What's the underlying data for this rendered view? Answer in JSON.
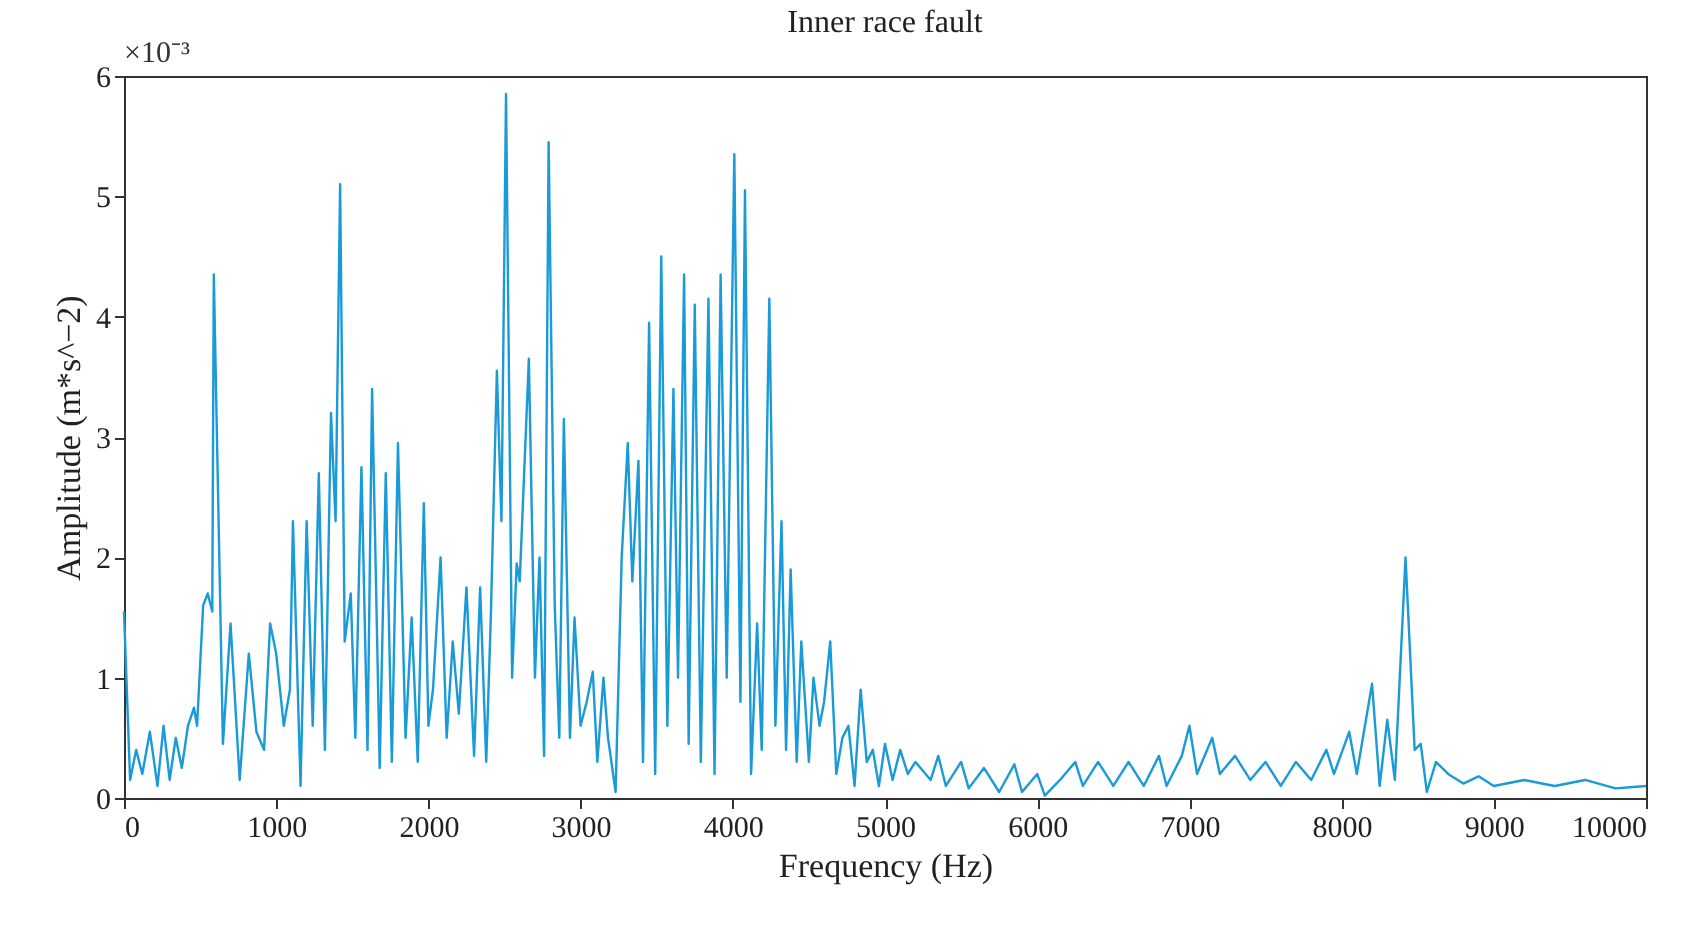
{
  "chart_data": {
    "type": "line",
    "title": "Inner race fault",
    "xlabel": "Frequency (Hz)",
    "ylabel": "Amplitude (m*s^−2)",
    "annotations": [
      "×10⁻³"
    ],
    "xlim": [
      0,
      10000
    ],
    "xticks": [
      0,
      1000,
      2000,
      3000,
      4000,
      5000,
      6000,
      7000,
      8000,
      9000,
      10000
    ],
    "ylim": [
      0,
      6
    ],
    "yticks": [
      0,
      1,
      2,
      3,
      4,
      5,
      6
    ],
    "grid": false,
    "legend": false,
    "marker": "none",
    "line_style": "solid",
    "series": [
      {
        "color": "#1a9ad6",
        "x": [
          0,
          40,
          80,
          120,
          170,
          220,
          260,
          300,
          340,
          380,
          420,
          460,
          480,
          520,
          550,
          580,
          590,
          650,
          700,
          760,
          820,
          870,
          920,
          960,
          1000,
          1050,
          1090,
          1110,
          1160,
          1200,
          1240,
          1280,
          1320,
          1360,
          1390,
          1420,
          1450,
          1490,
          1520,
          1560,
          1600,
          1630,
          1680,
          1720,
          1760,
          1800,
          1850,
          1890,
          1930,
          1970,
          2000,
          2030,
          2080,
          2120,
          2160,
          2200,
          2250,
          2300,
          2340,
          2380,
          2410,
          2450,
          2480,
          2510,
          2550,
          2580,
          2600,
          2660,
          2700,
          2730,
          2760,
          2790,
          2830,
          2860,
          2890,
          2930,
          2960,
          3000,
          3040,
          3080,
          3110,
          3150,
          3180,
          3230,
          3270,
          3310,
          3340,
          3380,
          3410,
          3450,
          3490,
          3530,
          3570,
          3610,
          3640,
          3680,
          3710,
          3750,
          3790,
          3840,
          3880,
          3920,
          3960,
          4010,
          4050,
          4080,
          4120,
          4160,
          4190,
          4240,
          4280,
          4320,
          4350,
          4380,
          4420,
          4450,
          4500,
          4530,
          4570,
          4600,
          4640,
          4680,
          4720,
          4760,
          4800,
          4840,
          4880,
          4920,
          4960,
          5000,
          5050,
          5100,
          5150,
          5200,
          5300,
          5350,
          5400,
          5500,
          5550,
          5650,
          5750,
          5850,
          5900,
          6000,
          6050,
          6150,
          6250,
          6300,
          6400,
          6500,
          6600,
          6700,
          6800,
          6850,
          6950,
          7000,
          7050,
          7150,
          7200,
          7300,
          7400,
          7500,
          7600,
          7700,
          7800,
          7900,
          7950,
          8050,
          8100,
          8200,
          8250,
          8300,
          8350,
          8420,
          8480,
          8520,
          8560,
          8620,
          8700,
          8800,
          8900,
          9000,
          9200,
          9400,
          9600,
          9800,
          10000
        ],
        "values": [
          1.55,
          0.15,
          0.4,
          0.2,
          0.55,
          0.1,
          0.6,
          0.15,
          0.5,
          0.25,
          0.6,
          0.75,
          0.6,
          1.6,
          1.7,
          1.55,
          4.35,
          0.45,
          1.45,
          0.15,
          1.2,
          0.55,
          0.4,
          1.45,
          1.2,
          0.6,
          0.9,
          2.3,
          0.1,
          2.3,
          0.6,
          2.7,
          0.4,
          3.2,
          2.3,
          5.1,
          1.3,
          1.7,
          0.5,
          2.75,
          0.4,
          3.4,
          0.25,
          2.7,
          0.3,
          2.95,
          0.5,
          1.5,
          0.3,
          2.45,
          0.6,
          0.9,
          2.0,
          0.5,
          1.3,
          0.7,
          1.75,
          0.35,
          1.75,
          0.3,
          1.5,
          3.55,
          2.3,
          5.85,
          1.0,
          1.95,
          1.8,
          3.65,
          1.0,
          2.0,
          0.35,
          5.45,
          1.6,
          0.5,
          3.15,
          0.5,
          1.5,
          0.6,
          0.8,
          1.05,
          0.3,
          1.0,
          0.5,
          0.05,
          2.0,
          2.95,
          1.8,
          2.8,
          0.3,
          3.95,
          0.2,
          4.5,
          0.6,
          3.4,
          1.0,
          4.35,
          0.45,
          4.1,
          0.3,
          4.15,
          0.2,
          4.35,
          1.0,
          5.35,
          0.8,
          5.05,
          0.2,
          1.45,
          0.4,
          4.15,
          0.6,
          2.3,
          0.4,
          1.9,
          0.3,
          1.3,
          0.3,
          1.0,
          0.6,
          0.8,
          1.3,
          0.2,
          0.5,
          0.6,
          0.1,
          0.9,
          0.3,
          0.4,
          0.1,
          0.45,
          0.15,
          0.4,
          0.2,
          0.3,
          0.15,
          0.35,
          0.1,
          0.3,
          0.08,
          0.25,
          0.05,
          0.28,
          0.05,
          0.2,
          0.02,
          0.15,
          0.3,
          0.1,
          0.3,
          0.1,
          0.3,
          0.1,
          0.35,
          0.1,
          0.35,
          0.6,
          0.2,
          0.5,
          0.2,
          0.35,
          0.15,
          0.3,
          0.1,
          0.3,
          0.15,
          0.4,
          0.2,
          0.55,
          0.2,
          0.95,
          0.1,
          0.65,
          0.15,
          2.0,
          0.4,
          0.45,
          0.05,
          0.3,
          0.2,
          0.12,
          0.18,
          0.1,
          0.15,
          0.1,
          0.15,
          0.08,
          0.1
        ]
      }
    ]
  }
}
